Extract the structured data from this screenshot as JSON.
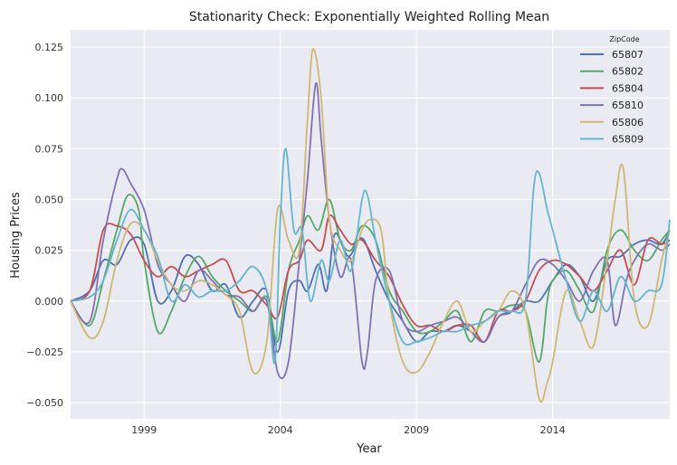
{
  "chart_data": {
    "type": "line",
    "title": "Stationarity Check: Exponentially Weighted Rolling Mean",
    "xlabel": "Year",
    "ylabel": "Housing Prices",
    "xlim": [
      1996.3,
      2018.3
    ],
    "ylim": [
      -0.058,
      0.1335
    ],
    "x_ticks": [
      1999,
      2004,
      2009,
      2014
    ],
    "x_tick_labels": [
      "1999",
      "2004",
      "2009",
      "2014"
    ],
    "y_ticks": [
      -0.05,
      -0.025,
      0.0,
      0.025,
      0.05,
      0.075,
      0.1,
      0.125
    ],
    "y_tick_labels": [
      "−0.050",
      "−0.025",
      "0.000",
      "0.025",
      "0.050",
      "0.075",
      "0.100",
      "0.125"
    ],
    "grid": true,
    "legend": {
      "title": "ZipCode",
      "position": "top-right"
    },
    "series": [
      {
        "name": "65807",
        "color": "#4c72b0",
        "x": [
          1996.3,
          1997,
          1997.5,
          1998,
          1998.5,
          1999,
          1999.5,
          2000,
          2000.5,
          2001,
          2001.5,
          2002,
          2002.5,
          2003,
          2003.5,
          2003.9,
          2004.3,
          2004.7,
          2005,
          2005.4,
          2005.7,
          2006,
          2006.5,
          2007,
          2007.5,
          2008,
          2008.5,
          2009,
          2009.5,
          2010,
          2010.5,
          2011,
          2011.5,
          2012,
          2012.5,
          2013,
          2013.5,
          2014,
          2014.5,
          2015,
          2015.5,
          2016,
          2016.5,
          2017,
          2017.5,
          2018,
          2018.3
        ],
        "y": [
          0.0,
          0.005,
          0.02,
          0.018,
          0.03,
          0.028,
          0.0,
          0.005,
          0.022,
          0.018,
          0.005,
          0.008,
          -0.008,
          0.0,
          0.005,
          -0.025,
          0.005,
          0.01,
          0.005,
          0.018,
          0.005,
          0.033,
          0.022,
          0.031,
          0.015,
          0.0,
          -0.01,
          -0.02,
          -0.015,
          -0.015,
          -0.012,
          -0.015,
          -0.02,
          -0.008,
          -0.005,
          0.0,
          0.0,
          0.01,
          0.018,
          0.012,
          0.0,
          0.02,
          0.022,
          0.028,
          0.03,
          0.028,
          0.035
        ]
      },
      {
        "name": "65802",
        "color": "#55a868",
        "x": [
          1996.3,
          1997,
          1997.5,
          1998,
          1998.4,
          1998.8,
          1999,
          1999.5,
          2000,
          2000.5,
          2001,
          2001.5,
          2002,
          2002.5,
          2003,
          2003.5,
          2003.9,
          2004.3,
          2004.7,
          2005,
          2005.4,
          2005.8,
          2006.2,
          2006.6,
          2007,
          2007.5,
          2008,
          2008.5,
          2009,
          2009.5,
          2010,
          2010.5,
          2011,
          2011.5,
          2012,
          2012.5,
          2013,
          2013.5,
          2013.8,
          2014,
          2014.5,
          2015,
          2015.5,
          2016,
          2016.5,
          2017,
          2017.5,
          2018,
          2018.3
        ],
        "y": [
          0.0,
          -0.012,
          0.01,
          0.035,
          0.052,
          0.045,
          0.02,
          -0.015,
          -0.005,
          0.012,
          0.022,
          0.012,
          0.005,
          0.0,
          -0.005,
          0.002,
          -0.02,
          0.015,
          0.03,
          0.042,
          0.035,
          0.05,
          0.03,
          0.025,
          0.037,
          0.03,
          0.005,
          -0.005,
          -0.015,
          -0.015,
          -0.01,
          -0.005,
          -0.02,
          -0.005,
          -0.005,
          -0.002,
          -0.005,
          -0.03,
          0.0,
          0.01,
          0.015,
          0.005,
          -0.005,
          0.025,
          0.035,
          0.025,
          0.02,
          0.03,
          0.035
        ]
      },
      {
        "name": "65804",
        "color": "#c44e52",
        "x": [
          1996.3,
          1997,
          1997.5,
          1998,
          1998.5,
          1999,
          1999.5,
          2000,
          2000.5,
          2001,
          2001.5,
          2002,
          2002.5,
          2003,
          2003.5,
          2003.9,
          2004.3,
          2004.7,
          2005,
          2005.5,
          2005.8,
          2006.2,
          2006.6,
          2007,
          2007.5,
          2008,
          2008.5,
          2009,
          2009.5,
          2010,
          2010.5,
          2011,
          2011.5,
          2012,
          2012.5,
          2013,
          2013.5,
          2014,
          2014.5,
          2015,
          2015.5,
          2016,
          2016.5,
          2017,
          2017.5,
          2018,
          2018.3
        ],
        "y": [
          0.0,
          0.005,
          0.035,
          0.037,
          0.033,
          0.02,
          0.012,
          0.017,
          0.012,
          0.015,
          0.018,
          0.02,
          0.005,
          0.005,
          -0.002,
          -0.008,
          0.015,
          0.02,
          0.03,
          0.025,
          0.042,
          0.035,
          0.028,
          0.03,
          0.02,
          0.012,
          -0.002,
          -0.012,
          -0.012,
          -0.015,
          -0.012,
          -0.012,
          -0.02,
          -0.005,
          -0.005,
          0.0,
          0.015,
          0.02,
          0.018,
          0.012,
          0.005,
          0.015,
          0.025,
          0.008,
          0.03,
          0.028,
          0.03
        ]
      },
      {
        "name": "65810",
        "color": "#8172b2",
        "x": [
          1996.3,
          1997,
          1997.5,
          1998,
          1998.2,
          1998.5,
          1999,
          1999.5,
          2000,
          2000.5,
          2001,
          2001.5,
          2002,
          2002.5,
          2003,
          2003.5,
          2003.9,
          2004.3,
          2004.7,
          2005,
          2005.3,
          2005.5,
          2005.8,
          2006.2,
          2006.6,
          2007,
          2007.2,
          2007.5,
          2008,
          2008.5,
          2009,
          2009.5,
          2010,
          2010.5,
          2011,
          2011.5,
          2012,
          2012.5,
          2013,
          2013.5,
          2014,
          2014.5,
          2015,
          2015.5,
          2016,
          2016.3,
          2016.7,
          2017,
          2017.5,
          2018,
          2018.3
        ],
        "y": [
          0.0,
          -0.01,
          0.03,
          0.06,
          0.065,
          0.058,
          0.045,
          0.018,
          0.008,
          0.0,
          0.015,
          0.01,
          0.003,
          0.002,
          -0.005,
          0.0,
          -0.035,
          -0.03,
          0.02,
          0.06,
          0.107,
          0.08,
          0.04,
          0.012,
          0.02,
          -0.03,
          -0.025,
          0.01,
          0.015,
          -0.01,
          -0.015,
          -0.012,
          -0.01,
          -0.008,
          -0.015,
          -0.02,
          -0.008,
          -0.005,
          0.008,
          0.02,
          0.018,
          0.01,
          0.0,
          0.015,
          0.02,
          -0.012,
          0.01,
          0.02,
          0.028,
          0.025,
          0.028
        ]
      },
      {
        "name": "65806",
        "color": "#ccb974",
        "x": [
          1996.3,
          1997,
          1997.5,
          1998,
          1998.5,
          1999,
          1999.5,
          2000,
          2000.5,
          2001,
          2001.5,
          2002,
          2002.5,
          2003,
          2003.5,
          2003.9,
          2004.3,
          2004.7,
          2005,
          2005.2,
          2005.5,
          2005.8,
          2006.2,
          2006.6,
          2007,
          2007.3,
          2007.7,
          2008,
          2008.5,
          2009,
          2009.5,
          2010,
          2010.5,
          2011,
          2011.5,
          2012,
          2012.5,
          2013,
          2013.5,
          2013.8,
          2014,
          2014.5,
          2015,
          2015.5,
          2016,
          2016.3,
          2016.6,
          2017,
          2017.5,
          2018,
          2018.3
        ],
        "y": [
          0.0,
          -0.018,
          -0.01,
          0.02,
          0.038,
          0.035,
          0.02,
          0.008,
          0.005,
          0.01,
          0.008,
          0.003,
          -0.005,
          -0.035,
          -0.02,
          0.045,
          0.03,
          0.025,
          0.09,
          0.124,
          0.1,
          0.04,
          0.025,
          0.02,
          0.035,
          0.04,
          0.035,
          0.0,
          -0.03,
          -0.035,
          -0.025,
          -0.01,
          0.0,
          -0.015,
          -0.01,
          -0.005,
          0.005,
          -0.005,
          -0.048,
          -0.04,
          -0.03,
          0.005,
          -0.01,
          -0.022,
          0.02,
          0.05,
          0.065,
          0.0,
          -0.012,
          0.02,
          0.035
        ]
      },
      {
        "name": "65809",
        "color": "#64b5cd",
        "x": [
          1996.3,
          1997,
          1997.5,
          1998,
          1998.5,
          1999,
          1999.5,
          2000,
          2000.5,
          2001,
          2001.5,
          2002,
          2002.5,
          2003,
          2003.5,
          2003.8,
          2004,
          2004.2,
          2004.5,
          2004.8,
          2005.1,
          2005.5,
          2005.8,
          2006.2,
          2006.6,
          2007,
          2007.2,
          2007.5,
          2008,
          2008.5,
          2009,
          2009.5,
          2010,
          2010.5,
          2011,
          2011.5,
          2012,
          2012.5,
          2013,
          2013.3,
          2013.5,
          2013.8,
          2014,
          2014.5,
          2015,
          2015.5,
          2016,
          2016.5,
          2017,
          2017.5,
          2018,
          2018.3
        ],
        "y": [
          0.0,
          0.002,
          0.01,
          0.03,
          0.045,
          0.035,
          0.022,
          0.0,
          0.008,
          0.002,
          0.005,
          0.005,
          0.01,
          0.017,
          0.005,
          -0.03,
          0.04,
          0.075,
          0.035,
          0.035,
          0.0,
          0.02,
          0.01,
          0.03,
          0.015,
          0.05,
          0.052,
          0.03,
          0.0,
          -0.02,
          -0.02,
          -0.018,
          -0.015,
          -0.015,
          -0.012,
          -0.01,
          -0.005,
          -0.005,
          0.0,
          0.055,
          0.063,
          0.045,
          0.035,
          0.01,
          -0.01,
          0.005,
          -0.005,
          0.012,
          0.0,
          0.005,
          0.008,
          0.04
        ]
      }
    ]
  }
}
